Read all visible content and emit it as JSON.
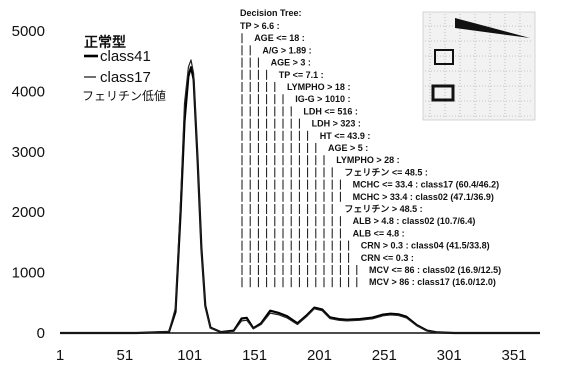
{
  "chart_data": {
    "type": "line",
    "title": "",
    "xlabel": "",
    "ylabel": "",
    "xlim": [
      1,
      371
    ],
    "ylim": [
      0,
      5000
    ],
    "x_ticks": [
      "1",
      "51",
      "101",
      "151",
      "201",
      "251",
      "301",
      "351"
    ],
    "y_ticks": [
      "0",
      "1000",
      "2000",
      "3000",
      "4000",
      "5000"
    ],
    "grid": false,
    "legend": {
      "position": "top-left",
      "groups": [
        {
          "header": "正常型",
          "entries": [
            "class41"
          ]
        },
        {
          "header": "",
          "entries": [
            "class17",
            "フェリチン低値"
          ]
        }
      ]
    },
    "series": [
      {
        "name": "class41",
        "color": "#000000",
        "points": [
          [
            1,
            0
          ],
          [
            60,
            0
          ],
          [
            85,
            20
          ],
          [
            90,
            350
          ],
          [
            94,
            2000
          ],
          [
            97,
            3500
          ],
          [
            100,
            4250
          ],
          [
            102,
            4400
          ],
          [
            104,
            4200
          ],
          [
            107,
            2900
          ],
          [
            110,
            1400
          ],
          [
            113,
            450
          ],
          [
            117,
            90
          ],
          [
            125,
            15
          ],
          [
            135,
            40
          ],
          [
            141,
            240
          ],
          [
            145,
            250
          ],
          [
            150,
            80
          ],
          [
            156,
            160
          ],
          [
            163,
            370
          ],
          [
            170,
            330
          ],
          [
            176,
            280
          ],
          [
            184,
            160
          ],
          [
            191,
            290
          ],
          [
            197,
            420
          ],
          [
            203,
            390
          ],
          [
            209,
            260
          ],
          [
            216,
            230
          ],
          [
            222,
            220
          ],
          [
            232,
            230
          ],
          [
            242,
            255
          ],
          [
            250,
            305
          ],
          [
            256,
            320
          ],
          [
            262,
            310
          ],
          [
            268,
            270
          ],
          [
            276,
            130
          ],
          [
            284,
            40
          ],
          [
            292,
            10
          ],
          [
            305,
            0
          ],
          [
            371,
            0
          ]
        ]
      },
      {
        "name": "class17",
        "color": "#222222",
        "points": [
          [
            1,
            0
          ],
          [
            60,
            0
          ],
          [
            85,
            25
          ],
          [
            90,
            420
          ],
          [
            94,
            2200
          ],
          [
            97,
            3800
          ],
          [
            100,
            4400
          ],
          [
            102,
            4520
          ],
          [
            104,
            4300
          ],
          [
            107,
            2950
          ],
          [
            110,
            1350
          ],
          [
            113,
            420
          ],
          [
            117,
            80
          ],
          [
            125,
            15
          ],
          [
            135,
            30
          ],
          [
            141,
            200
          ],
          [
            145,
            210
          ],
          [
            150,
            70
          ],
          [
            156,
            140
          ],
          [
            163,
            330
          ],
          [
            170,
            300
          ],
          [
            176,
            250
          ],
          [
            184,
            140
          ],
          [
            191,
            270
          ],
          [
            197,
            400
          ],
          [
            203,
            370
          ],
          [
            209,
            240
          ],
          [
            216,
            210
          ],
          [
            222,
            200
          ],
          [
            232,
            210
          ],
          [
            242,
            235
          ],
          [
            250,
            285
          ],
          [
            256,
            300
          ],
          [
            262,
            290
          ],
          [
            268,
            250
          ],
          [
            276,
            120
          ],
          [
            284,
            35
          ],
          [
            292,
            8
          ],
          [
            305,
            0
          ],
          [
            371,
            0
          ]
        ]
      }
    ],
    "decision_tree": {
      "header": "Decision Tree:",
      "lines": [
        {
          "depth": 0,
          "text": "TP > 6.6 :"
        },
        {
          "depth": 1,
          "text": "AGE <= 18 :"
        },
        {
          "depth": 2,
          "text": "A/G > 1.89 :"
        },
        {
          "depth": 3,
          "text": "AGE > 3 :"
        },
        {
          "depth": 4,
          "text": "TP <= 7.1 :"
        },
        {
          "depth": 5,
          "text": "LYMPHO > 18 :"
        },
        {
          "depth": 6,
          "text": "IG-G > 1010 :"
        },
        {
          "depth": 7,
          "text": "LDH <= 516 :"
        },
        {
          "depth": 8,
          "text": "LDH > 323 :"
        },
        {
          "depth": 9,
          "text": "HT <= 43.9 :"
        },
        {
          "depth": 10,
          "text": "AGE > 5 :"
        },
        {
          "depth": 11,
          "text": "LYMPHO > 28 :"
        },
        {
          "depth": 12,
          "text": "フェリチン <= 48.5 :"
        },
        {
          "depth": 13,
          "text": "MCHC <= 33.4 : class17 (60.4/46.2)"
        },
        {
          "depth": 13,
          "text": "MCHC > 33.4 : class02 (47.1/36.9)"
        },
        {
          "depth": 12,
          "text": "フェリチン > 48.5 :"
        },
        {
          "depth": 13,
          "text": "ALB > 4.8 : class02 (10.7/6.4)"
        },
        {
          "depth": 13,
          "text": "ALB <= 4.8 :"
        },
        {
          "depth": 14,
          "text": "CRN > 0.3 : class04 (41.5/33.8)"
        },
        {
          "depth": 14,
          "text": "CRN <= 0.3 :"
        },
        {
          "depth": 15,
          "text": "MCV <= 86 : class02 (16.9/12.5)"
        },
        {
          "depth": 15,
          "text": "MCV > 86 : class17 (16.0/12.0)"
        }
      ]
    }
  }
}
